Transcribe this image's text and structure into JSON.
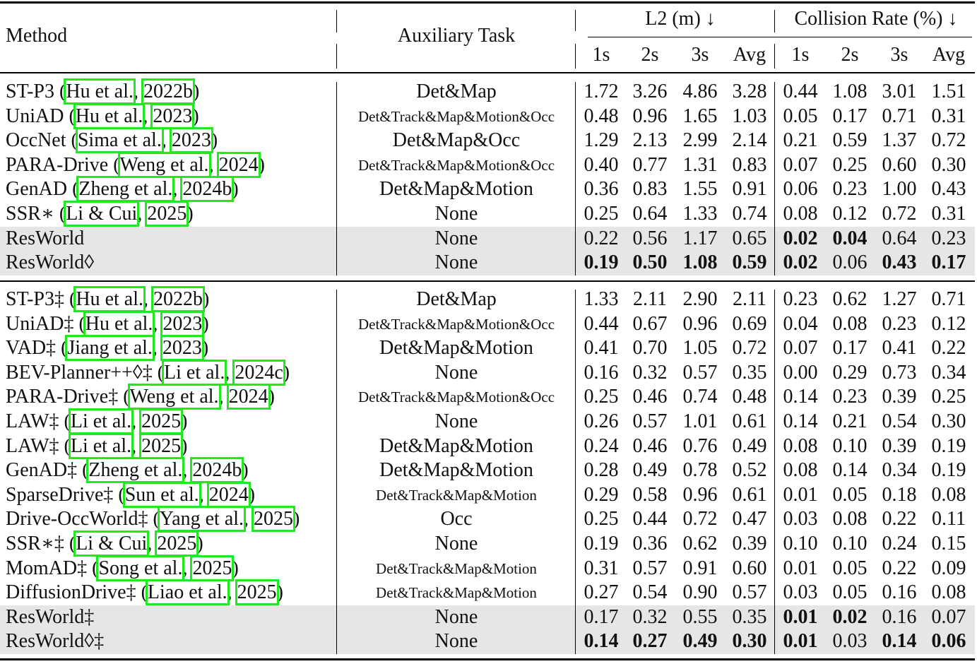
{
  "header": {
    "method": "Method",
    "auxiliary_task": "Auxiliary Task",
    "l2_group": "L2 (m) ↓",
    "collision_group": "Collision Rate (%) ↓",
    "l2_cols": [
      "1s",
      "2s",
      "3s",
      "Avg"
    ],
    "col_cols": [
      "1s",
      "2s",
      "3s",
      "Avg"
    ]
  },
  "styles": {
    "shade_color": "#e6e6e6",
    "citation_box_color": "#22e822"
  },
  "groups": [
    {
      "rows": [
        {
          "method": "ST-P3",
          "cite_author": "Hu et al.",
          "cite_year": "2022b",
          "aux": "Det&Map",
          "aux_small": false,
          "l2": [
            "1.72",
            "3.26",
            "4.86",
            "3.28"
          ],
          "col": [
            "0.44",
            "1.08",
            "3.01",
            "1.51"
          ],
          "bold": [],
          "shaded": false
        },
        {
          "method": "UniAD",
          "cite_author": "Hu et al.",
          "cite_year": "2023",
          "aux": "Det&Track&Map&Motion&Occ",
          "aux_small": true,
          "l2": [
            "0.48",
            "0.96",
            "1.65",
            "1.03"
          ],
          "col": [
            "0.05",
            "0.17",
            "0.71",
            "0.31"
          ],
          "bold": [],
          "shaded": false
        },
        {
          "method": "OccNet",
          "cite_author": "Sima et al.",
          "cite_year": "2023",
          "aux": "Det&Map&Occ",
          "aux_small": false,
          "l2": [
            "1.29",
            "2.13",
            "2.99",
            "2.14"
          ],
          "col": [
            "0.21",
            "0.59",
            "1.37",
            "0.72"
          ],
          "bold": [],
          "shaded": false
        },
        {
          "method": "PARA-Drive",
          "cite_author": "Weng et al.",
          "cite_year": "2024",
          "aux": "Det&Track&Map&Motion&Occ",
          "aux_small": true,
          "l2": [
            "0.40",
            "0.77",
            "1.31",
            "0.83"
          ],
          "col": [
            "0.07",
            "0.25",
            "0.60",
            "0.30"
          ],
          "bold": [],
          "shaded": false
        },
        {
          "method": "GenAD",
          "cite_author": "Zheng et al.",
          "cite_year": "2024b",
          "aux": "Det&Map&Motion",
          "aux_small": false,
          "l2": [
            "0.36",
            "0.83",
            "1.55",
            "0.91"
          ],
          "col": [
            "0.06",
            "0.23",
            "1.00",
            "0.43"
          ],
          "bold": [],
          "shaded": false
        },
        {
          "method": "SSR∗",
          "cite_author": "Li & Cui",
          "cite_year": "2025",
          "aux": "None",
          "aux_small": false,
          "l2": [
            "0.25",
            "0.64",
            "1.33",
            "0.74"
          ],
          "col": [
            "0.08",
            "0.12",
            "0.72",
            "0.31"
          ],
          "bold": [],
          "shaded": false
        },
        {
          "method": "ResWorld",
          "cite_author": "",
          "cite_year": "",
          "aux": "None",
          "aux_small": false,
          "l2": [
            "0.22",
            "0.56",
            "1.17",
            "0.65"
          ],
          "col": [
            "0.02",
            "0.04",
            "0.64",
            "0.23"
          ],
          "bold": [
            4,
            5
          ],
          "shaded": true
        },
        {
          "method": "ResWorld◊",
          "cite_author": "",
          "cite_year": "",
          "aux": "None",
          "aux_small": false,
          "l2": [
            "0.19",
            "0.50",
            "1.08",
            "0.59"
          ],
          "col": [
            "0.02",
            "0.06",
            "0.43",
            "0.17"
          ],
          "bold": [
            0,
            1,
            2,
            3,
            4,
            6,
            7
          ],
          "shaded": true
        }
      ]
    },
    {
      "rows": [
        {
          "method": "ST-P3‡",
          "cite_author": "Hu et al.",
          "cite_year": "2022b",
          "aux": "Det&Map",
          "aux_small": false,
          "l2": [
            "1.33",
            "2.11",
            "2.90",
            "2.11"
          ],
          "col": [
            "0.23",
            "0.62",
            "1.27",
            "0.71"
          ],
          "bold": [],
          "shaded": false
        },
        {
          "method": "UniAD‡",
          "cite_author": "Hu et al.",
          "cite_year": "2023",
          "aux": "Det&Track&Map&Motion&Occ",
          "aux_small": true,
          "l2": [
            "0.44",
            "0.67",
            "0.96",
            "0.69"
          ],
          "col": [
            "0.04",
            "0.08",
            "0.23",
            "0.12"
          ],
          "bold": [],
          "shaded": false
        },
        {
          "method": "VAD‡",
          "cite_author": "Jiang et al.",
          "cite_year": "2023",
          "aux": "Det&Map&Motion",
          "aux_small": false,
          "l2": [
            "0.41",
            "0.70",
            "1.05",
            "0.72"
          ],
          "col": [
            "0.07",
            "0.17",
            "0.41",
            "0.22"
          ],
          "bold": [],
          "shaded": false
        },
        {
          "method": "BEV-Planner++◊‡",
          "cite_author": "Li et al.",
          "cite_year": "2024c",
          "aux": "None",
          "aux_small": false,
          "l2": [
            "0.16",
            "0.32",
            "0.57",
            "0.35"
          ],
          "col": [
            "0.00",
            "0.29",
            "0.73",
            "0.34"
          ],
          "bold": [],
          "shaded": false
        },
        {
          "method": "PARA-Drive‡",
          "cite_author": "Weng et al.",
          "cite_year": "2024",
          "aux": "Det&Track&Map&Motion&Occ",
          "aux_small": true,
          "l2": [
            "0.25",
            "0.46",
            "0.74",
            "0.48"
          ],
          "col": [
            "0.14",
            "0.23",
            "0.39",
            "0.25"
          ],
          "bold": [],
          "shaded": false
        },
        {
          "method": "LAW‡",
          "cite_author": "Li et al.",
          "cite_year": "2025",
          "aux": "None",
          "aux_small": false,
          "l2": [
            "0.26",
            "0.57",
            "1.01",
            "0.61"
          ],
          "col": [
            "0.14",
            "0.21",
            "0.54",
            "0.30"
          ],
          "bold": [],
          "shaded": false
        },
        {
          "method": "LAW‡",
          "cite_author": "Li et al.",
          "cite_year": "2025",
          "aux": "Det&Map&Motion",
          "aux_small": false,
          "l2": [
            "0.24",
            "0.46",
            "0.76",
            "0.49"
          ],
          "col": [
            "0.08",
            "0.10",
            "0.39",
            "0.19"
          ],
          "bold": [],
          "shaded": false
        },
        {
          "method": "GenAD‡",
          "cite_author": "Zheng et al.",
          "cite_year": "2024b",
          "aux": "Det&Map&Motion",
          "aux_small": false,
          "l2": [
            "0.28",
            "0.49",
            "0.78",
            "0.52"
          ],
          "col": [
            "0.08",
            "0.14",
            "0.34",
            "0.19"
          ],
          "bold": [],
          "shaded": false
        },
        {
          "method": "SparseDrive‡",
          "cite_author": "Sun et al.",
          "cite_year": "2024",
          "aux": "Det&Track&Map&Motion",
          "aux_small": true,
          "l2": [
            "0.29",
            "0.58",
            "0.96",
            "0.61"
          ],
          "col": [
            "0.01",
            "0.05",
            "0.18",
            "0.08"
          ],
          "bold": [],
          "shaded": false
        },
        {
          "method": "Drive-OccWorld‡",
          "cite_author": "Yang et al.",
          "cite_year": "2025",
          "aux": "Occ",
          "aux_small": false,
          "l2": [
            "0.25",
            "0.44",
            "0.72",
            "0.47"
          ],
          "col": [
            "0.03",
            "0.08",
            "0.22",
            "0.11"
          ],
          "bold": [],
          "shaded": false
        },
        {
          "method": "SSR∗‡",
          "cite_author": "Li & Cui",
          "cite_year": "2025",
          "aux": "None",
          "aux_small": false,
          "l2": [
            "0.19",
            "0.36",
            "0.62",
            "0.39"
          ],
          "col": [
            "0.10",
            "0.10",
            "0.24",
            "0.15"
          ],
          "bold": [],
          "shaded": false
        },
        {
          "method": "MomAD‡",
          "cite_author": "Song et al.",
          "cite_year": "2025",
          "aux": "Det&Track&Map&Motion",
          "aux_small": true,
          "l2": [
            "0.31",
            "0.57",
            "0.91",
            "0.60"
          ],
          "col": [
            "0.01",
            "0.05",
            "0.22",
            "0.09"
          ],
          "bold": [],
          "shaded": false
        },
        {
          "method": "DiffusionDrive‡",
          "cite_author": "Liao et al.",
          "cite_year": "2025",
          "aux": "Det&Track&Map&Motion",
          "aux_small": true,
          "l2": [
            "0.27",
            "0.54",
            "0.90",
            "0.57"
          ],
          "col": [
            "0.03",
            "0.05",
            "0.16",
            "0.08"
          ],
          "bold": [],
          "shaded": false
        },
        {
          "method": "ResWorld‡",
          "cite_author": "",
          "cite_year": "",
          "aux": "None",
          "aux_small": false,
          "l2": [
            "0.17",
            "0.32",
            "0.55",
            "0.35"
          ],
          "col": [
            "0.01",
            "0.02",
            "0.16",
            "0.07"
          ],
          "bold": [
            4,
            5
          ],
          "shaded": true
        },
        {
          "method": "ResWorld◊‡",
          "cite_author": "",
          "cite_year": "",
          "aux": "None",
          "aux_small": false,
          "l2": [
            "0.14",
            "0.27",
            "0.49",
            "0.30"
          ],
          "col": [
            "0.01",
            "0.03",
            "0.14",
            "0.06"
          ],
          "bold": [
            0,
            1,
            2,
            3,
            4,
            6,
            7
          ],
          "shaded": true
        }
      ]
    }
  ]
}
